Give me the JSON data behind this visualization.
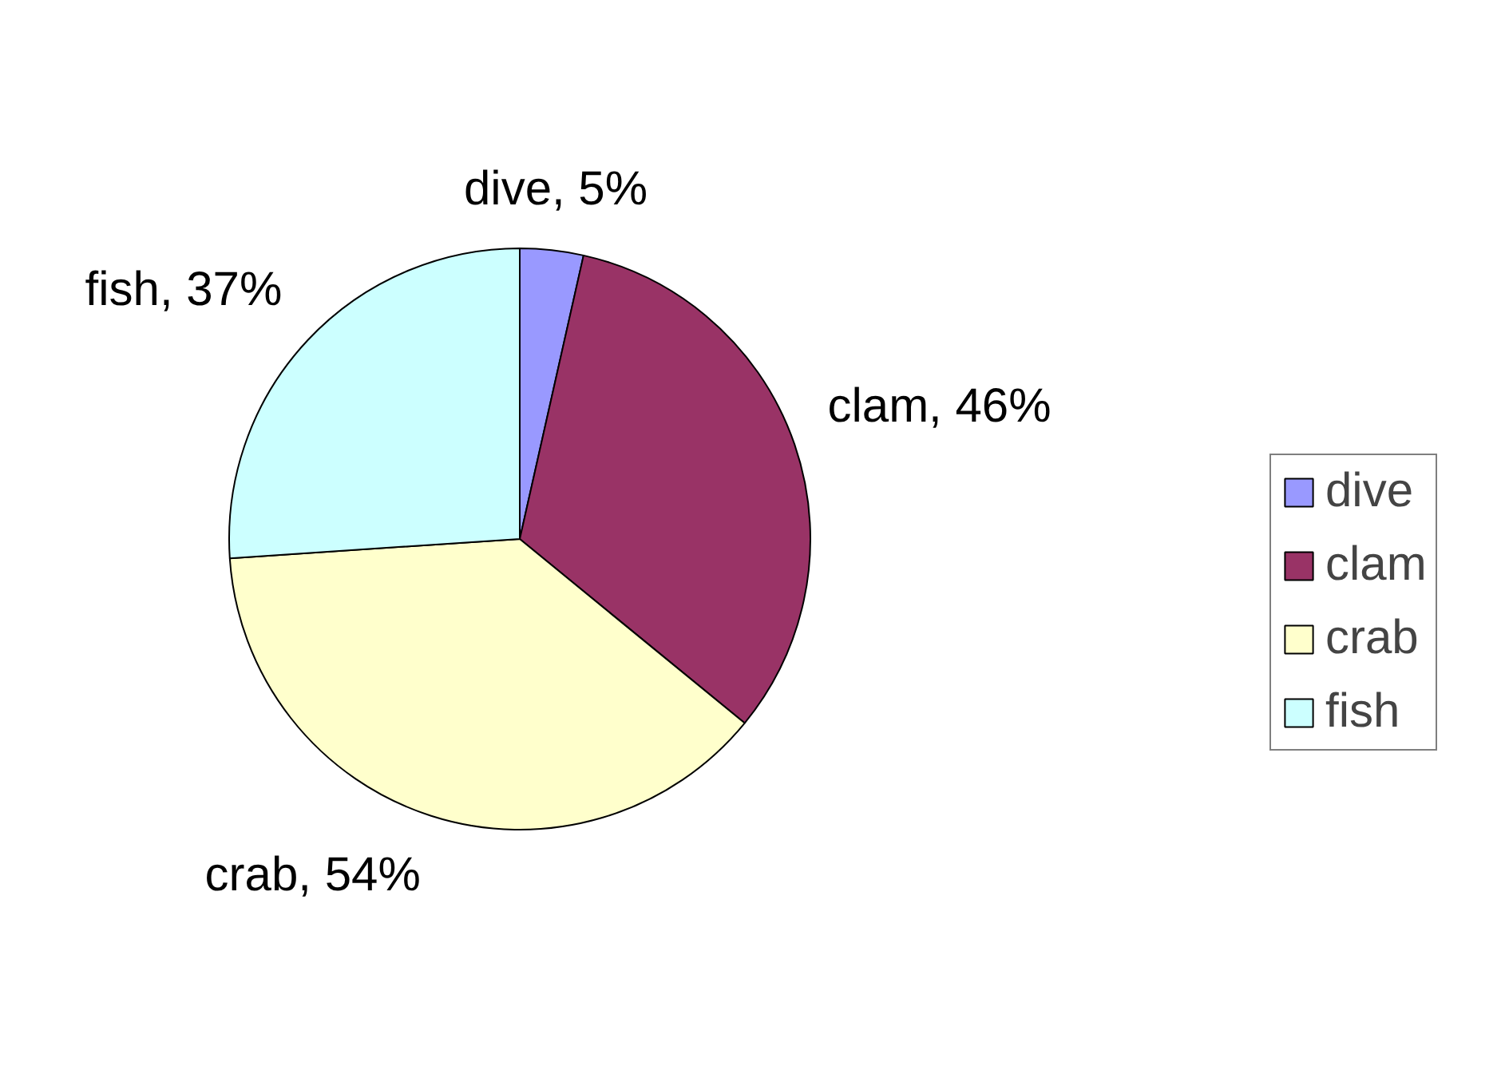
{
  "chart_data": {
    "type": "pie",
    "categories": [
      "dive",
      "clam",
      "crab",
      "fish"
    ],
    "values": [
      5,
      46,
      54,
      37
    ],
    "colors": [
      "#9999ff",
      "#993366",
      "#ffffcc",
      "#ccffff"
    ],
    "value_labels": [
      "dive, 5%",
      "clam, 46%",
      "crab, 54%",
      "fish, 37%"
    ],
    "legend": "right"
  }
}
